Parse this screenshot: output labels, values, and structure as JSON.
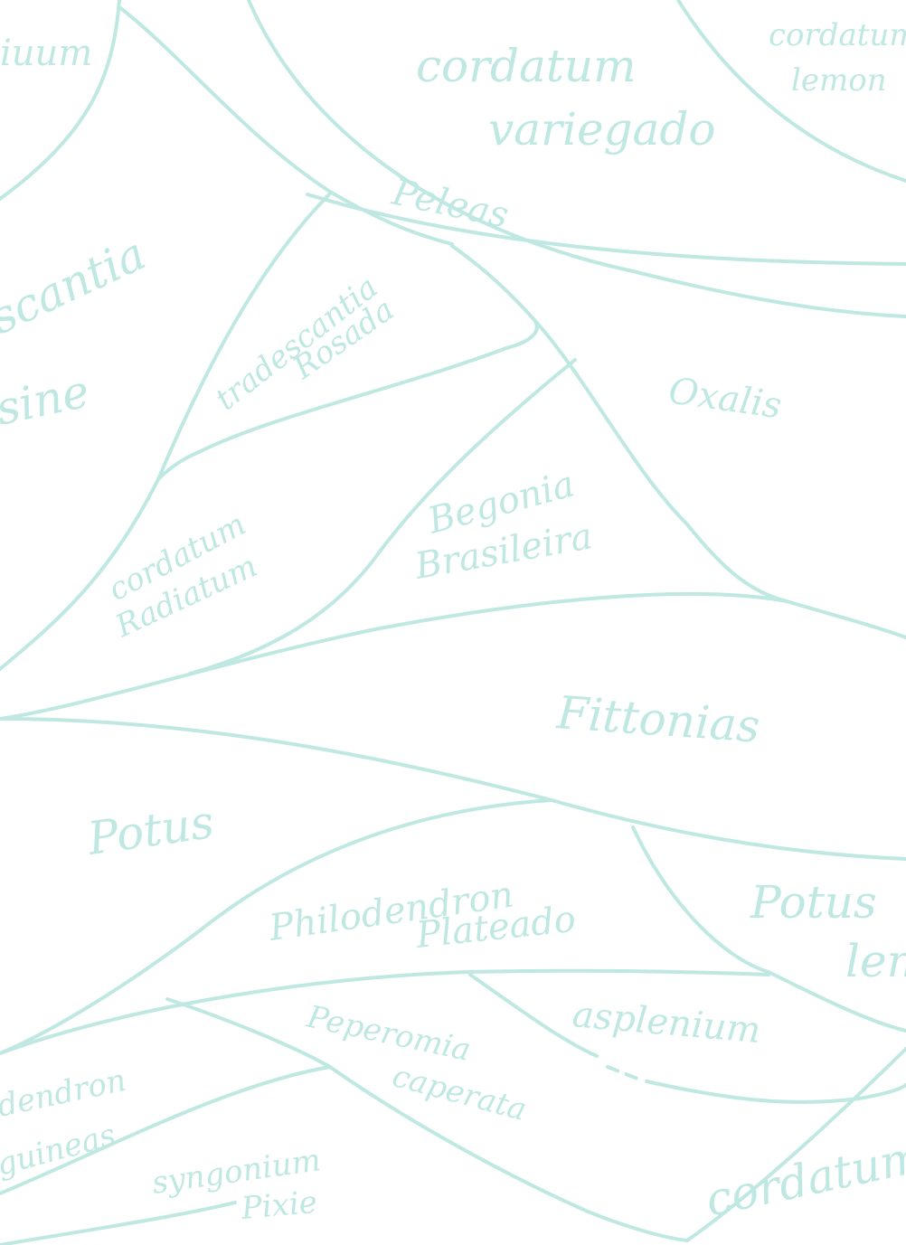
{
  "colors": {
    "ink": "#bfe8e2",
    "background": "#ffffff"
  },
  "labels": {
    "tl_partial": "iuum",
    "cordatum_variegado": [
      "cordatum",
      "variegado"
    ],
    "cordatum_lemon": [
      "cordatum",
      "lemon"
    ],
    "peleas": "Peleas",
    "tradescantia_left": [
      "scantia",
      "sine"
    ],
    "tradescantia_rosada": [
      "tradescantia",
      "Rosada"
    ],
    "oxalis": "Oxalis",
    "cordatum_radiatum": [
      "cordatum",
      "Radiatum"
    ],
    "begonia_brasileira": [
      "Begonia",
      "Brasileira"
    ],
    "fittonias": "Fittonias",
    "potus": "Potus",
    "philodendron_plateado": [
      "Philodendron",
      "Plateado"
    ],
    "potus_lemon": [
      "Potus",
      "lemon"
    ],
    "peperomia_caperata": [
      "Peperomia",
      "caperata"
    ],
    "asplenium": "asplenium",
    "dendron_partial": [
      "dendron",
      "guineas"
    ],
    "syngonium_pixie": [
      "syngonium",
      "Pixie"
    ],
    "cordatum_br": "cordatum"
  }
}
